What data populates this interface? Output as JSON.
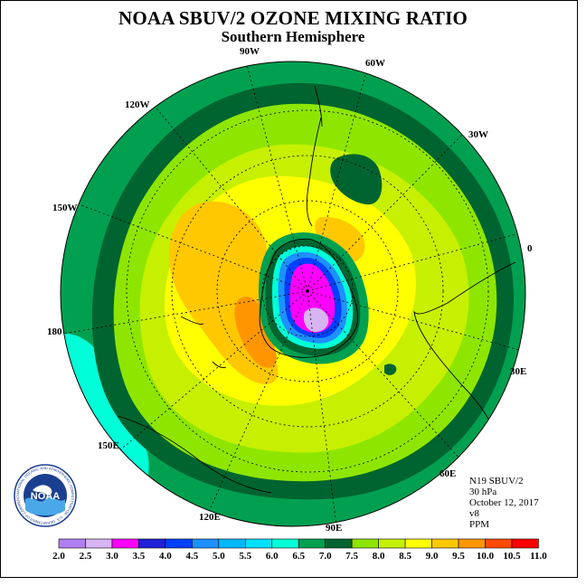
{
  "header": {
    "title": "NOAA SBUV/2 OZONE MIXING RATIO",
    "subtitle": "Southern Hemisphere"
  },
  "map": {
    "projection": "south polar stereographic",
    "hemisphere": "Southern",
    "longitude_labels": [
      "90W",
      "60W",
      "30W",
      "0",
      "30E",
      "60E",
      "90E",
      "120E",
      "150E",
      "180",
      "150W",
      "120W"
    ]
  },
  "info": {
    "instrument": "N19 SBUV/2",
    "level": "30 hPa",
    "date": "October 12, 2017",
    "version": "v8",
    "units": "PPM"
  },
  "color_scale": {
    "labels": [
      "2.0",
      "2.5",
      "3.0",
      "3.5",
      "4.0",
      "4.5",
      "5.0",
      "5.5",
      "6.0",
      "6.5",
      "7.0",
      "7.5",
      "8.0",
      "8.5",
      "9.0",
      "9.5",
      "10.0",
      "10.5",
      "11.0"
    ],
    "colors": [
      "#b07ff0",
      "#d7b4f2",
      "#ff00ff",
      "#2020d8",
      "#0040ff",
      "#1e90ff",
      "#00b8ff",
      "#00e0ff",
      "#00ffd8",
      "#00a050",
      "#006430",
      "#8ee600",
      "#c6f000",
      "#ffff00",
      "#ffc800",
      "#ff9600",
      "#ff4a00",
      "#ff0000",
      "#7f4a3a"
    ]
  },
  "logo": {
    "text": "NOAA",
    "ring_text": "NATIONAL OCEANIC AND ATMOSPHERIC ADMINISTRATION · U.S. DEPARTMENT OF COMMERCE"
  }
}
